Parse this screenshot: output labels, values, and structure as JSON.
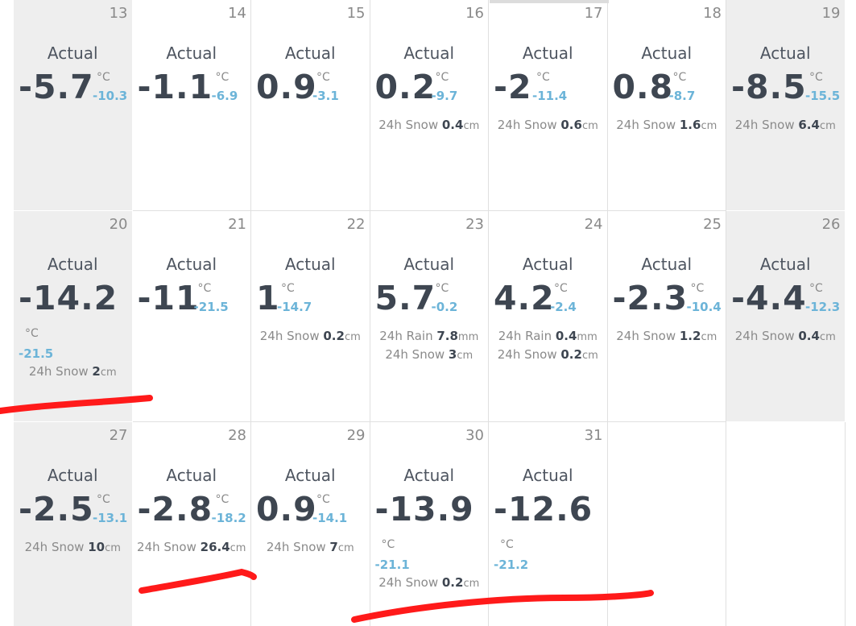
{
  "colors": {
    "weekend_bg": "#eeeeee",
    "temp_dark": "#3e4651",
    "low_blue": "#6cb4d8",
    "muted": "#8a8a8a",
    "marker_red": "#ff1a1a"
  },
  "weeks": [
    [
      {
        "day": "13",
        "label": "Actual",
        "temp": "-5.7",
        "unit": "°C",
        "low": "-10.3",
        "weekend": true
      },
      {
        "day": "14",
        "label": "Actual",
        "temp": "-1.1",
        "unit": "°C",
        "low": "-6.9"
      },
      {
        "day": "15",
        "label": "Actual",
        "temp": "0.9",
        "unit": "°C",
        "low": "-3.1"
      },
      {
        "day": "16",
        "label": "Actual",
        "temp": "0.2",
        "unit": "°C",
        "low": "-9.7",
        "lines": [
          {
            "k": "24h Snow",
            "v": "0.4",
            "u": "cm"
          }
        ]
      },
      {
        "day": "17",
        "label": "Actual",
        "temp": "-2",
        "unit": "°C",
        "low": "-11.4",
        "lines": [
          {
            "k": "24h Snow",
            "v": "0.6",
            "u": "cm"
          }
        ]
      },
      {
        "day": "18",
        "label": "Actual",
        "temp": "0.8",
        "unit": "°C",
        "low": "-8.7",
        "lines": [
          {
            "k": "24h Snow",
            "v": "1.6",
            "u": "cm"
          }
        ]
      },
      {
        "day": "19",
        "label": "Actual",
        "temp": "-8.5",
        "unit": "°C",
        "low": "-15.5",
        "weekend": true,
        "lines": [
          {
            "k": "24h Snow",
            "v": "6.4",
            "u": "cm"
          }
        ]
      }
    ],
    [
      {
        "day": "20",
        "label": "Actual",
        "temp": "-14.2",
        "unit": "°C",
        "low": "-21.5",
        "weekend": true,
        "wrap": true,
        "lines": [
          {
            "k": "24h Snow",
            "v": "2",
            "u": "cm"
          }
        ]
      },
      {
        "day": "21",
        "label": "Actual",
        "temp": "-11",
        "unit": "°C",
        "low": "-21.5"
      },
      {
        "day": "22",
        "label": "Actual",
        "temp": "1",
        "unit": "°C",
        "low": "-14.7",
        "lines": [
          {
            "k": "24h Snow",
            "v": "0.2",
            "u": "cm"
          }
        ]
      },
      {
        "day": "23",
        "label": "Actual",
        "temp": "5.7",
        "unit": "°C",
        "low": "-0.2",
        "lines": [
          {
            "k": "24h Rain",
            "v": "7.8",
            "u": "mm"
          },
          {
            "k": "24h Snow",
            "v": "3",
            "u": "cm"
          }
        ]
      },
      {
        "day": "24",
        "label": "Actual",
        "temp": "4.2",
        "unit": "°C",
        "low": "-2.4",
        "lines": [
          {
            "k": "24h Rain",
            "v": "0.4",
            "u": "mm"
          },
          {
            "k": "24h Snow",
            "v": "0.2",
            "u": "cm"
          }
        ]
      },
      {
        "day": "25",
        "label": "Actual",
        "temp": "-2.3",
        "unit": "°C",
        "low": "-10.4",
        "lines": [
          {
            "k": "24h Snow",
            "v": "1.2",
            "u": "cm"
          }
        ]
      },
      {
        "day": "26",
        "label": "Actual",
        "temp": "-4.4",
        "unit": "°C",
        "low": "-12.3",
        "weekend": true,
        "lines": [
          {
            "k": "24h Snow",
            "v": "0.4",
            "u": "cm"
          }
        ]
      }
    ],
    [
      {
        "day": "27",
        "label": "Actual",
        "temp": "-2.5",
        "unit": "°C",
        "low": "-13.1",
        "weekend": true,
        "lines": [
          {
            "k": "24h Snow",
            "v": "10",
            "u": "cm"
          }
        ]
      },
      {
        "day": "28",
        "label": "Actual",
        "temp": "-2.8",
        "unit": "°C",
        "low": "-18.2",
        "lines": [
          {
            "k": "24h Snow",
            "v": "26.4",
            "u": "cm"
          }
        ]
      },
      {
        "day": "29",
        "label": "Actual",
        "temp": "0.9",
        "unit": "°C",
        "low": "-14.1",
        "lines": [
          {
            "k": "24h Snow",
            "v": "7",
            "u": "cm"
          }
        ]
      },
      {
        "day": "30",
        "label": "Actual",
        "temp": "-13.9",
        "unit": "°C",
        "low": "-21.1",
        "wrap": true,
        "lines": [
          {
            "k": "24h Snow",
            "v": "0.2",
            "u": "cm"
          }
        ]
      },
      {
        "day": "31",
        "label": "Actual",
        "temp": "-12.6",
        "unit": "°C",
        "low": "-21.2",
        "wrap": true
      },
      {
        "day": "",
        "empty": true
      },
      {
        "day": "",
        "empty": true
      }
    ]
  ]
}
